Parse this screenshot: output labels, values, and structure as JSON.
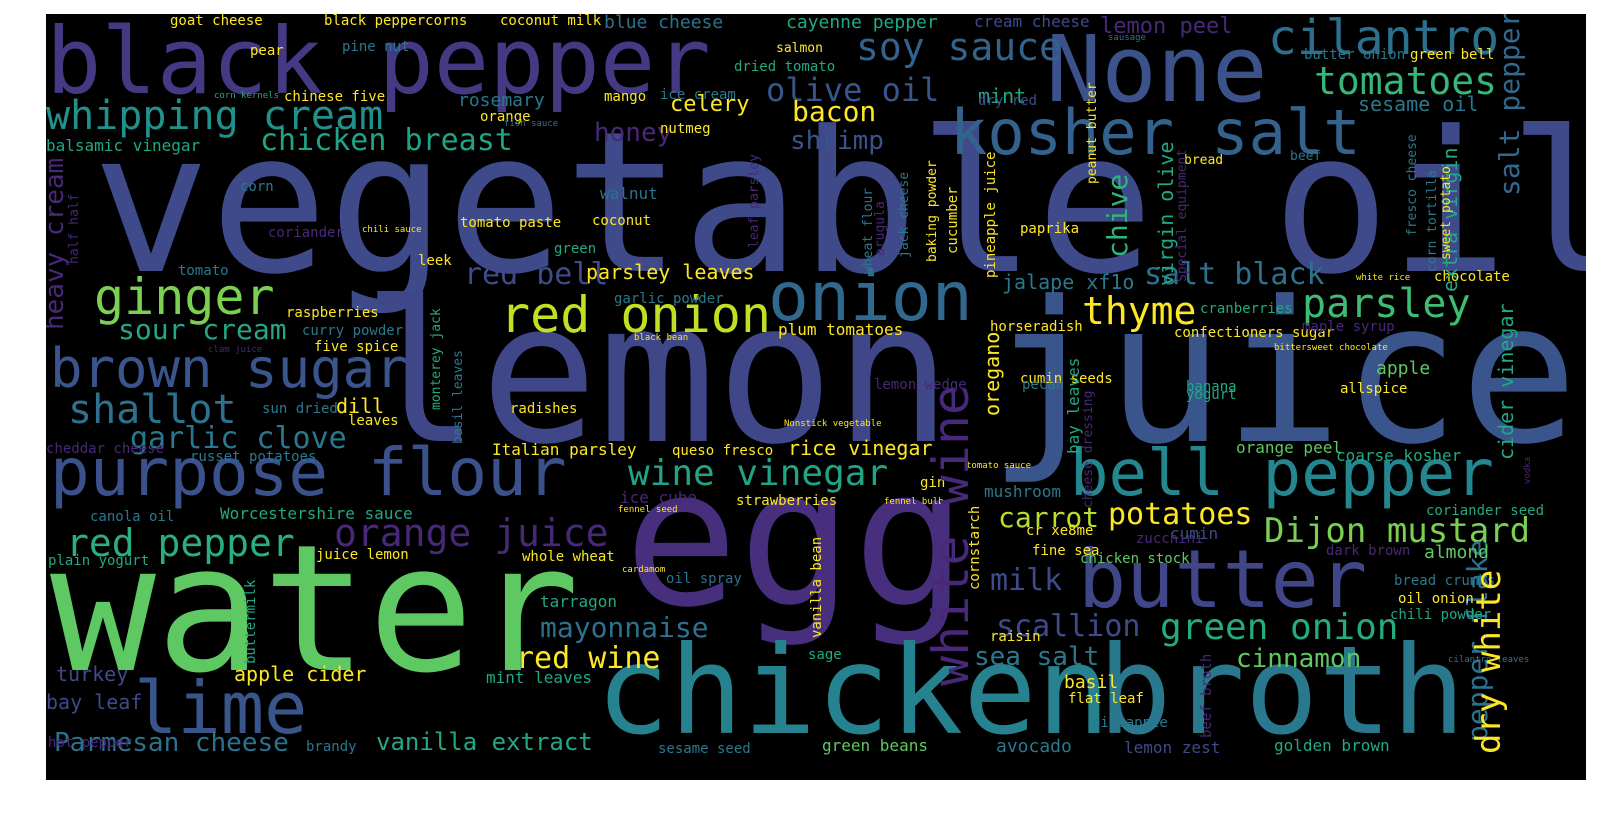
{
  "palette": {
    "p1": "#46337e",
    "p2": "#404387",
    "p3": "#39568c",
    "p4": "#33638d",
    "p5": "#2c728e",
    "p6": "#24868e",
    "p7": "#1f958b",
    "p8": "#2fb47c",
    "p9": "#5ec962",
    "p10": "#9bd93c",
    "p11": "#fde725",
    "p0": "#440154"
  },
  "words": [
    "vegetable oil",
    "lemon",
    "juice",
    "egg",
    "water",
    "chicken",
    "broth",
    "black pepper",
    "None",
    "kosher salt",
    "purpose flour",
    "bell pepper",
    "butter",
    "onion",
    "lime",
    "red onion",
    "brown sugar",
    "ginger",
    "cilantro",
    "soy sauce",
    "whipping cream",
    "tomatoes",
    "white wine",
    "parsley",
    "shallot",
    "sour cream",
    "wine vinegar",
    "orange juice",
    "garlic clove",
    "red pepper",
    "Dijon mustard",
    "green onion",
    "thyme",
    "salt black",
    "olive oil",
    "chicken breast",
    "dry white",
    "salt pepper",
    "scallion",
    "mayonnaise",
    "carrot",
    "potatoes",
    "red wine",
    "milk",
    "Parmesan cheese",
    "cinnamon",
    "vanilla extract",
    "sea salt",
    "heavy cream",
    "red bell",
    "honey",
    "bacon",
    "chive",
    "pepper flake",
    "shrimp",
    "oregano",
    "cider vinegar",
    "mint",
    "celery",
    "rosemary",
    "sesame oil",
    "virgin olive",
    "apple cider",
    "turkey",
    "bay leaf",
    "extra virgin",
    "parsley leaves",
    "rice vinegar",
    "Italian parsley",
    "cayenne pepper",
    "lemon peel",
    "blue cheese",
    "cream cheese",
    "goat cheese",
    "black peppercorns",
    "coconut milk",
    "dill",
    "jalape xf1o",
    "mint leaves",
    "avocado",
    "lemon zest",
    "golden brown",
    "sesame seed",
    "green beans",
    "basil",
    "apple",
    "almond",
    "coarse kosher",
    "orange peel",
    "cumin",
    "chicken stock",
    "mushroom",
    "plum tomatoes",
    "confectioners sugar",
    "maple syrup",
    "chocolate",
    "balsamic vinegar",
    "nutmeg",
    "walnut",
    "coconut",
    "tomato paste",
    "tomato",
    "leek",
    "green",
    "paprika",
    "cucumber",
    "pineapple juice",
    "horseradish",
    "cranberries",
    "cumin seeds",
    "bay leaves",
    "pecan",
    "raisin",
    "banana",
    "allspice",
    "Worcestershire sauce",
    "canola oil",
    "plain yogurt",
    "juice lemon",
    "whole wheat",
    "oil spray",
    "tarragon",
    "strawberries",
    "ice cube",
    "queso fresco",
    "radishes",
    "sun dried",
    "leaves",
    "five spice",
    "curry powder",
    "raspberries",
    "hot pepper",
    "brandy",
    "sage",
    "buttermilk",
    "vanilla bean",
    "flat leaf",
    "pineapple",
    "beef broth",
    "bread crumbs",
    "oil onion",
    "chili powder",
    "coriander seed",
    "dark brown",
    "fine sea",
    "cornstarch",
    "zucchini",
    "cr xe8me",
    "gin",
    "corn",
    "coriander",
    "chili sauce",
    "mango",
    "orange",
    "ice cream",
    "dried tomato",
    "salmon",
    "pear",
    "pine nut",
    "chinese five",
    "corn kernels",
    "fish sauce",
    "dry red",
    "butter onion",
    "green bell",
    "sausage",
    "bread",
    "beef",
    "fresco cheese",
    "corn tortilla",
    "sweet potato",
    "white rice",
    "yogurt",
    "baking powder",
    "jack cheese",
    "arugula",
    "leaf parsley",
    "wheat flour",
    "peanut butter",
    "Special equipment",
    "monterey jack",
    "basil leaves",
    "cheese dressing",
    "garlic powder",
    "Nonstick vegetable",
    "fennel seed",
    "fennel bulb",
    "cardamom",
    "black bean",
    "clam juice",
    "cheddar cheese",
    "russet potatoes",
    "half half",
    "bittersweet chocolate",
    "cilantro leaves",
    "tomato sauce",
    "lemon wedge",
    "vodka",
    "caper",
    "pepper sauce"
  ]
}
